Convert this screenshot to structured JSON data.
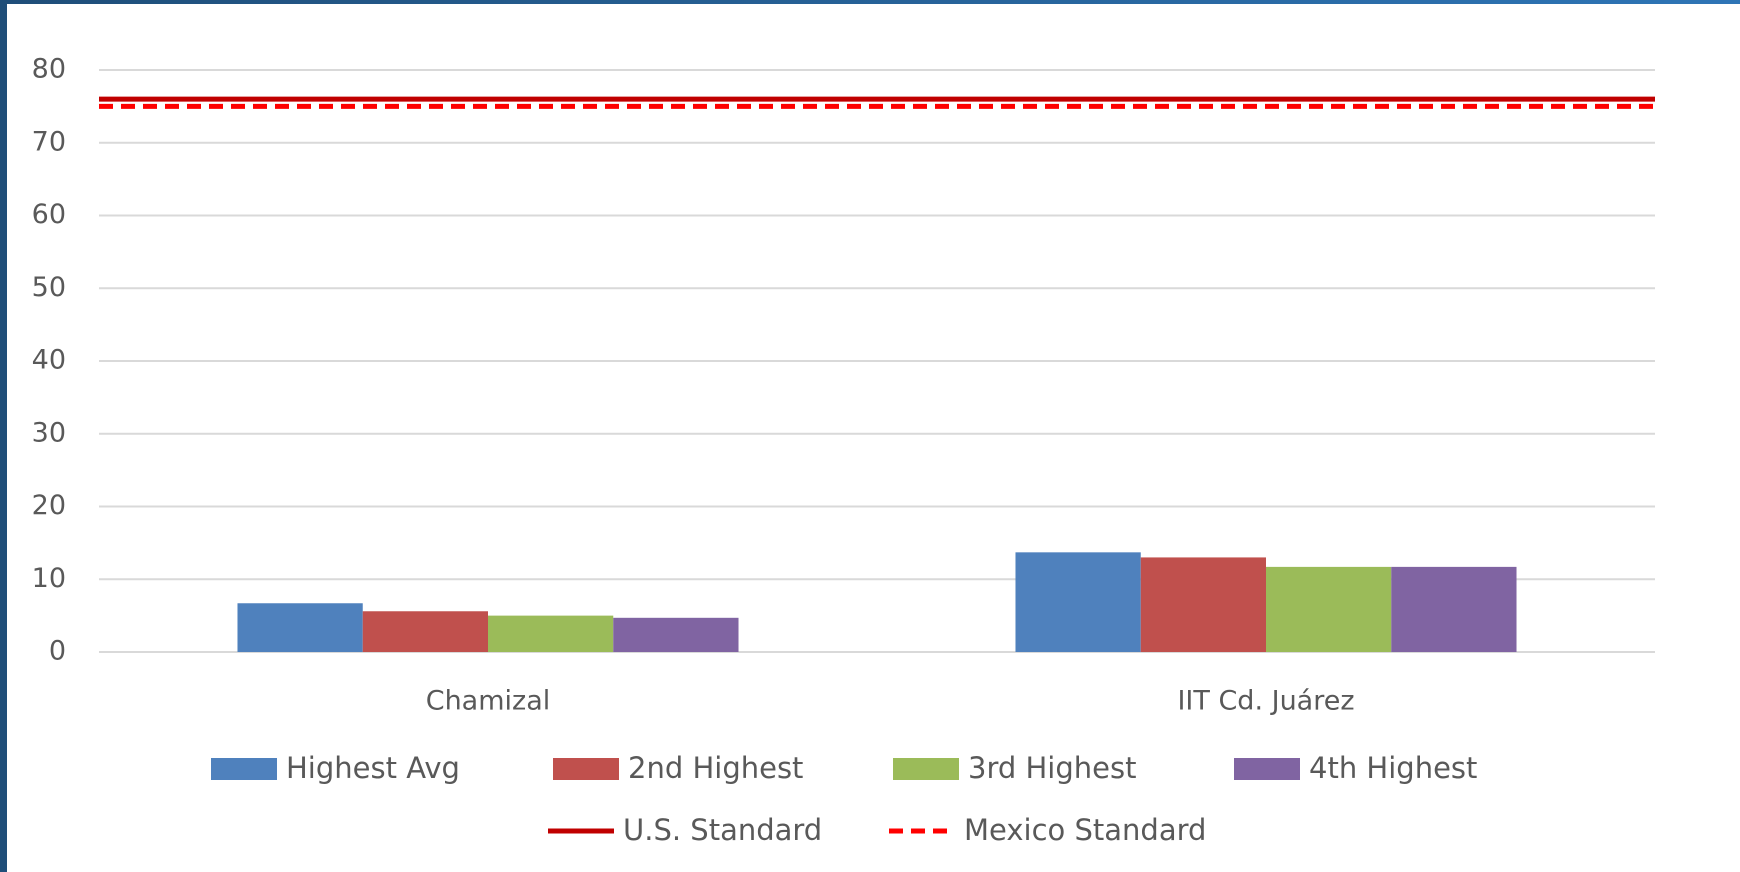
{
  "chart_data": {
    "type": "bar",
    "categories": [
      "Chamizal",
      "IIT Cd. Juárez"
    ],
    "series": [
      {
        "name": "Highest Avg",
        "color": "#4f81bd",
        "values": [
          6.7,
          13.7
        ]
      },
      {
        "name": "2nd Highest",
        "color": "#c0504d",
        "values": [
          5.6,
          13
        ]
      },
      {
        "name": "3rd Highest",
        "color": "#9bbb59",
        "values": [
          5,
          11.7
        ]
      },
      {
        "name": "4th Highest",
        "color": "#8064a2",
        "values": [
          4.7,
          11.7
        ]
      },
      {
        "name": "U.S. Standard",
        "type": "line",
        "style": "solid",
        "color": "#c00000",
        "values": [
          76,
          76
        ]
      },
      {
        "name": "Mexico Standard",
        "type": "line",
        "style": "dashed",
        "color": "#ff0000",
        "values": [
          75,
          75
        ]
      }
    ],
    "ylim": [
      0,
      80
    ],
    "yticks": [
      0,
      10,
      20,
      30,
      40,
      50,
      60,
      70,
      80
    ],
    "grid": true
  }
}
